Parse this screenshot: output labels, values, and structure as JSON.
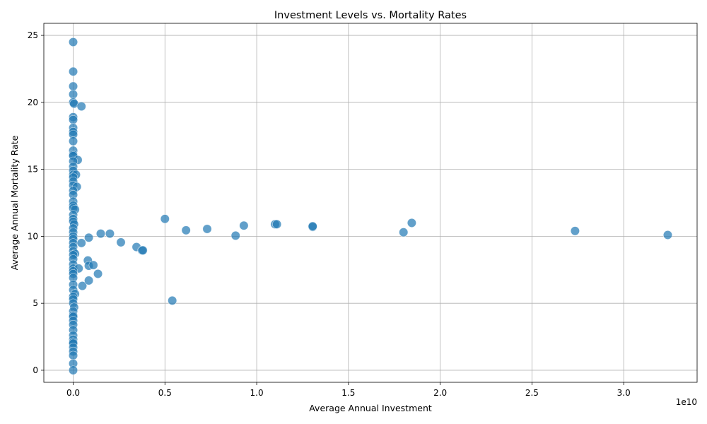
{
  "chart_data": {
    "type": "scatter",
    "title": "Investment Levels vs. Mortality Rates",
    "xlabel": "Average Annual Investment",
    "ylabel": "Average Annual Mortality Rate",
    "x_offset_label": "1e10",
    "xlim": [
      -0.16,
      3.4
    ],
    "ylim": [
      -0.9,
      25.9
    ],
    "x_ticks": [
      0,
      0.5,
      1.0,
      1.5,
      2.0,
      2.5,
      3.0
    ],
    "x_tick_labels": [
      "0.0",
      "0.5",
      "1.0",
      "1.5",
      "2.0",
      "2.5",
      "3.0"
    ],
    "y_ticks": [
      0,
      5,
      10,
      15,
      20,
      25
    ],
    "y_tick_labels": [
      "0",
      "5",
      "10",
      "15",
      "20",
      "25"
    ],
    "grid": true,
    "color": "#1f77b4",
    "points": [
      [
        0.0,
        24.5
      ],
      [
        0.0,
        22.3
      ],
      [
        0.0,
        21.2
      ],
      [
        0.0,
        20.6
      ],
      [
        0.0,
        20.0
      ],
      [
        0.005,
        19.9
      ],
      [
        0.045,
        19.7
      ],
      [
        0.0,
        18.9
      ],
      [
        0.0,
        18.7
      ],
      [
        0.0,
        18.1
      ],
      [
        0.0,
        17.8
      ],
      [
        0.0,
        17.6
      ],
      [
        0.0,
        17.1
      ],
      [
        0.0,
        16.4
      ],
      [
        0.0,
        16.1
      ],
      [
        0.0,
        16.0
      ],
      [
        0.025,
        15.7
      ],
      [
        0.0,
        15.6
      ],
      [
        0.0,
        15.2
      ],
      [
        0.0,
        14.9
      ],
      [
        0.0,
        14.6
      ],
      [
        0.015,
        14.6
      ],
      [
        0.0,
        14.4
      ],
      [
        0.0,
        14.1
      ],
      [
        0.0,
        13.8
      ],
      [
        0.02,
        13.7
      ],
      [
        0.0,
        13.4
      ],
      [
        0.0,
        13.1
      ],
      [
        0.0,
        12.6
      ],
      [
        0.0,
        12.3
      ],
      [
        0.0,
        12.1
      ],
      [
        0.01,
        12.0
      ],
      [
        0.0,
        11.6
      ],
      [
        0.0,
        11.3
      ],
      [
        0.0,
        11.1
      ],
      [
        0.005,
        10.9
      ],
      [
        0.0,
        10.6
      ],
      [
        0.0,
        10.3
      ],
      [
        0.0,
        10.0
      ],
      [
        0.0,
        9.8
      ],
      [
        0.0,
        9.5
      ],
      [
        0.045,
        9.5
      ],
      [
        0.0,
        9.2
      ],
      [
        0.0,
        8.9
      ],
      [
        0.01,
        8.7
      ],
      [
        0.0,
        8.6
      ],
      [
        0.0,
        8.3
      ],
      [
        0.0,
        7.9
      ],
      [
        0.0,
        7.6
      ],
      [
        0.03,
        7.6
      ],
      [
        0.0,
        7.4
      ],
      [
        0.0,
        7.2
      ],
      [
        0.0,
        6.9
      ],
      [
        0.0,
        6.4
      ],
      [
        0.05,
        6.3
      ],
      [
        0.0,
        6.0
      ],
      [
        0.01,
        5.7
      ],
      [
        0.0,
        5.5
      ],
      [
        0.0,
        5.3
      ],
      [
        0.0,
        5.0
      ],
      [
        0.005,
        4.7
      ],
      [
        0.0,
        4.4
      ],
      [
        0.0,
        4.1
      ],
      [
        0.0,
        4.0
      ],
      [
        0.0,
        3.7
      ],
      [
        0.0,
        3.4
      ],
      [
        0.0,
        3.0
      ],
      [
        0.0,
        2.6
      ],
      [
        0.0,
        2.3
      ],
      [
        0.0,
        2.1
      ],
      [
        0.0,
        2.0
      ],
      [
        0.0,
        1.7
      ],
      [
        0.0,
        1.4
      ],
      [
        0.0,
        1.1
      ],
      [
        0.0,
        0.5
      ],
      [
        0.0,
        0.0
      ],
      [
        0.085,
        9.9
      ],
      [
        0.08,
        8.2
      ],
      [
        0.085,
        7.8
      ],
      [
        0.11,
        7.85
      ],
      [
        0.085,
        6.7
      ],
      [
        0.135,
        7.2
      ],
      [
        0.15,
        10.2
      ],
      [
        0.2,
        10.2
      ],
      [
        0.26,
        9.55
      ],
      [
        0.345,
        9.2
      ],
      [
        0.375,
        8.95
      ],
      [
        0.38,
        8.95
      ],
      [
        0.5,
        11.3
      ],
      [
        0.54,
        5.2
      ],
      [
        0.615,
        10.45
      ],
      [
        0.73,
        10.55
      ],
      [
        0.885,
        10.05
      ],
      [
        0.93,
        10.8
      ],
      [
        1.1,
        10.9
      ],
      [
        1.11,
        10.9
      ],
      [
        1.305,
        10.7
      ],
      [
        1.305,
        10.75
      ],
      [
        1.8,
        10.3
      ],
      [
        1.845,
        11.0
      ],
      [
        2.735,
        10.4
      ],
      [
        3.24,
        10.1
      ]
    ]
  }
}
